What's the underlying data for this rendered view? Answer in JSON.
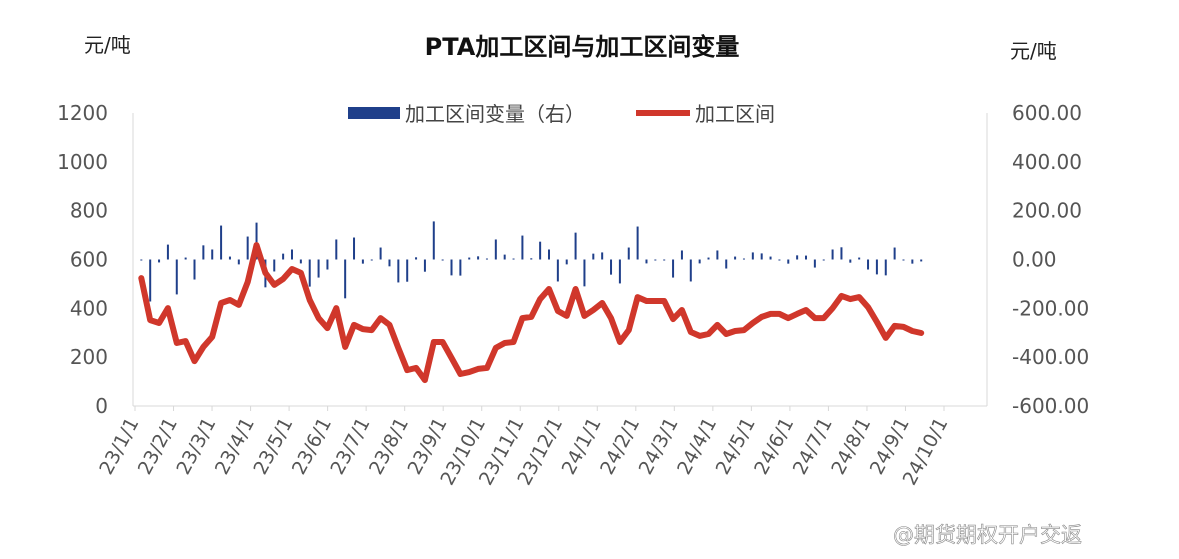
{
  "chart_data": {
    "type": "bar+line",
    "title": "PTA加工区间与加工区间变量",
    "ylabel_left": "元/吨",
    "ylabel_right": "元/吨",
    "ylim_left": [
      0,
      1200
    ],
    "ylim_right": [
      -600,
      600
    ],
    "yticks_left": [
      "0",
      "200",
      "400",
      "600",
      "800",
      "1000",
      "1200"
    ],
    "yticks_right": [
      "-600.00",
      "-400.00",
      "-200.00",
      "0.00",
      "200.00",
      "400.00",
      "600.00"
    ],
    "xticks": [
      "23/1/1",
      "23/2/1",
      "23/3/1",
      "23/4/1",
      "23/5/1",
      "23/6/1",
      "23/7/1",
      "23/8/1",
      "23/9/1",
      "23/10/1",
      "23/11/1",
      "23/12/1",
      "24/1/1",
      "24/2/1",
      "24/3/1",
      "24/4/1",
      "24/5/1",
      "24/6/1",
      "24/7/1",
      "24/8/1",
      "24/9/1",
      "24/10/1"
    ],
    "legend_position": "top",
    "grid": false,
    "x": [
      "2023-01-06",
      "2023-01-13",
      "2023-01-20",
      "2023-01-27",
      "2023-02-03",
      "2023-02-10",
      "2023-02-17",
      "2023-02-24",
      "2023-03-03",
      "2023-03-10",
      "2023-03-17",
      "2023-03-24",
      "2023-03-31",
      "2023-04-07",
      "2023-04-14",
      "2023-04-21",
      "2023-04-28",
      "2023-05-05",
      "2023-05-12",
      "2023-05-19",
      "2023-05-26",
      "2023-06-02",
      "2023-06-09",
      "2023-06-16",
      "2023-06-23",
      "2023-06-30",
      "2023-07-07",
      "2023-07-14",
      "2023-07-21",
      "2023-07-28",
      "2023-08-04",
      "2023-08-11",
      "2023-08-18",
      "2023-08-25",
      "2023-09-01",
      "2023-09-08",
      "2023-09-15",
      "2023-09-22",
      "2023-09-29",
      "2023-10-06",
      "2023-10-13",
      "2023-10-20",
      "2023-10-27",
      "2023-11-03",
      "2023-11-10",
      "2023-11-17",
      "2023-11-24",
      "2023-12-01",
      "2023-12-08",
      "2023-12-15",
      "2023-12-22",
      "2023-12-29",
      "2024-01-05",
      "2024-01-12",
      "2024-01-19",
      "2024-01-26",
      "2024-02-02",
      "2024-02-09",
      "2024-02-16",
      "2024-02-23",
      "2024-03-01",
      "2024-03-08",
      "2024-03-15",
      "2024-03-22",
      "2024-03-29",
      "2024-04-05",
      "2024-04-12",
      "2024-04-19",
      "2024-04-26",
      "2024-05-03",
      "2024-05-10",
      "2024-05-17",
      "2024-05-24",
      "2024-05-31",
      "2024-06-07",
      "2024-06-14",
      "2024-06-21",
      "2024-06-28",
      "2024-07-05",
      "2024-07-12",
      "2024-07-19",
      "2024-07-26",
      "2024-08-02",
      "2024-08-09",
      "2024-08-16",
      "2024-08-23",
      "2024-08-30",
      "2024-09-06",
      "2024-09-13"
    ],
    "series": [
      {
        "name": "加工区间变量（右）",
        "type": "bar",
        "axis": "right",
        "color": "#1f3f8a",
        "values": [
          0,
          -172,
          -12,
          61,
          -143,
          8,
          -82,
          58,
          41,
          139,
          12,
          -20,
          94,
          151,
          -114,
          -49,
          24,
          41,
          -16,
          -111,
          -74,
          -41,
          82,
          -159,
          90,
          -17,
          -4,
          49,
          -28,
          -94,
          -91,
          9,
          -50,
          156,
          0,
          -65,
          -66,
          8,
          13,
          4,
          82,
          20,
          4,
          98,
          5,
          73,
          41,
          -90,
          -20,
          110,
          -110,
          24,
          29,
          -62,
          -98,
          49,
          135,
          -16,
          0,
          0,
          -74,
          37,
          -90,
          -16,
          8,
          37,
          -37,
          12,
          4,
          29,
          25,
          12,
          0,
          -17,
          17,
          16,
          -33,
          0,
          41,
          50,
          -13,
          8,
          -41,
          -61,
          -65,
          49,
          -4,
          -17,
          -8
        ]
      },
      {
        "name": "加工区间",
        "type": "line",
        "axis": "left",
        "color": "#d0372b",
        "values": [
          524,
          352,
          340,
          401,
          258,
          266,
          184,
          242,
          283,
          422,
          434,
          414,
          508,
          659,
          545,
          496,
          520,
          561,
          545,
          434,
          360,
          319,
          401,
          242,
          332,
          315,
          311,
          360,
          332,
          238,
          147,
          156,
          106,
          262,
          262,
          197,
          131,
          139,
          152,
          156,
          238,
          258,
          262,
          360,
          365,
          438,
          479,
          389,
          369,
          479,
          369,
          393,
          422,
          360,
          262,
          311,
          446,
          430,
          430,
          430,
          356,
          393,
          303,
          287,
          295,
          332,
          295,
          307,
          311,
          340,
          365,
          377,
          377,
          360,
          377,
          393,
          360,
          360,
          401,
          451,
          438,
          446,
          405,
          344,
          279,
          328,
          324,
          307,
          299
        ]
      }
    ]
  },
  "watermark": "@期货期权开户交返"
}
